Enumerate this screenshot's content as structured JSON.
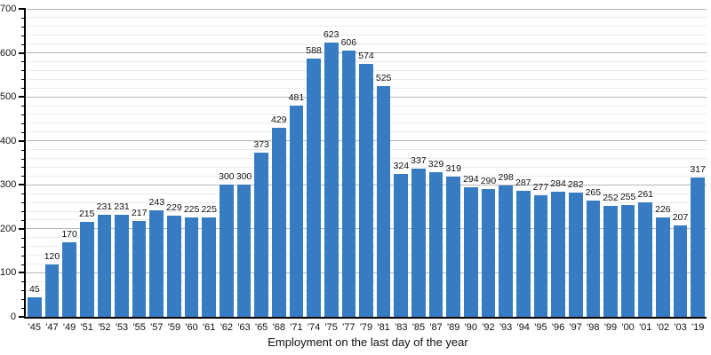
{
  "chart_data": {
    "type": "bar",
    "title": "",
    "xlabel": "Employment on the last day of the year",
    "ylabel": "",
    "categories": [
      "'45",
      "'47",
      "'49",
      "'51",
      "'52",
      "'53",
      "'55",
      "'57",
      "'59",
      "'60",
      "'61",
      "'62",
      "'63",
      "'65",
      "'68",
      "'71",
      "'74",
      "'75",
      "'77",
      "'79",
      "'81",
      "'83",
      "'85",
      "'87",
      "'89",
      "'90",
      "'92",
      "'93",
      "'94",
      "'95",
      "'96",
      "'97",
      "'98",
      "'99",
      "'00",
      "'01",
      "'02",
      "'03",
      "'19"
    ],
    "values": [
      45,
      120,
      170,
      215,
      231,
      231,
      217,
      243,
      229,
      225,
      225,
      300,
      300,
      373,
      429,
      481,
      588,
      623,
      606,
      574,
      525,
      324,
      337,
      329,
      319,
      294,
      290,
      298,
      287,
      277,
      284,
      282,
      265,
      252,
      255,
      261,
      226,
      207,
      317
    ],
    "value_labels_shown": true,
    "ylim": [
      0,
      700
    ],
    "yticks": [
      0,
      100,
      200,
      300,
      400,
      500,
      600,
      700
    ],
    "minor_grid_step": 20,
    "grid": true,
    "legend": "none",
    "colors": {
      "bar": "#377cc3",
      "major_grid": "#b5b5b5",
      "minor_grid": "#ebebeb",
      "axis": "#000000",
      "text": "#111111",
      "background": "#ffffff"
    }
  }
}
